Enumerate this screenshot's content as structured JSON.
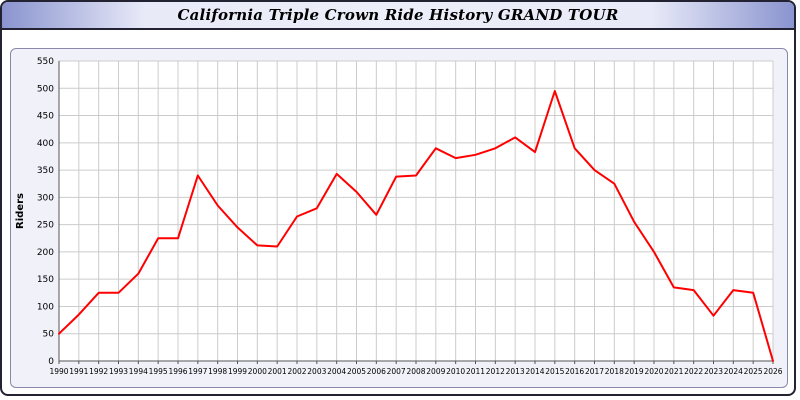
{
  "window": {
    "title": "California Triple Crown Ride History GRAND TOUR"
  },
  "chart_data": {
    "type": "line",
    "title": "California Triple Crown Ride History GRAND TOUR",
    "xlabel": "",
    "ylabel": "Riders",
    "ylim": [
      0,
      550
    ],
    "ytick_step": 50,
    "grid": true,
    "legend_position": "none",
    "line_color": "#ff0000",
    "grid_color": "#cccccc",
    "axis_color": "#555555",
    "categories": [
      1990,
      1991,
      1992,
      1993,
      1994,
      1995,
      1996,
      1997,
      1998,
      1999,
      2000,
      2001,
      2002,
      2003,
      2004,
      2005,
      2006,
      2007,
      2008,
      2009,
      2010,
      2011,
      2012,
      2013,
      2014,
      2015,
      2016,
      2017,
      2018,
      2019,
      2020,
      2021,
      2022,
      2023,
      2024,
      2025,
      2026
    ],
    "series": [
      {
        "name": "Riders",
        "values": [
          50,
          85,
          125,
          125,
          160,
          225,
          225,
          340,
          285,
          245,
          212,
          210,
          265,
          280,
          343,
          310,
          268,
          338,
          340,
          390,
          372,
          378,
          390,
          410,
          383,
          495,
          390,
          350,
          325,
          255,
          200,
          135,
          130,
          83,
          130,
          125,
          0
        ]
      }
    ]
  }
}
